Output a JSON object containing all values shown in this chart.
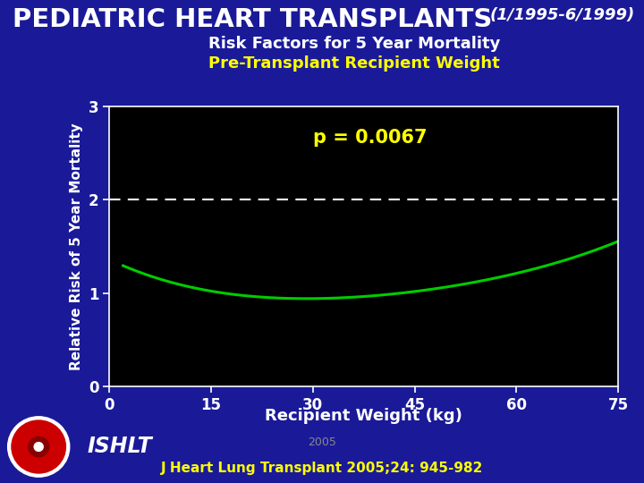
{
  "title_main": "PEDIATRIC HEART TRANSPLANTS",
  "title_date": "(1/1995-6/1999)",
  "subtitle1": "Risk Factors for 5 Year Mortality",
  "subtitle2": "Pre-Transplant Recipient Weight",
  "xlabel": "Recipient Weight (kg)",
  "ylabel": "Relative Risk of 5 Year Mortality",
  "p_value_text": "p = 0.0067",
  "citation": "J Heart Lung Transplant 2005;24: 945-982",
  "year": "2005",
  "ishlt_text": "ISHLT",
  "bg_color": "#1a1a99",
  "plot_bg_color": "#000000",
  "curve_color": "#00cc00",
  "dashed_line_color": "#ffffff",
  "title_color": "#ffffff",
  "subtitle1_color": "#ffffff",
  "subtitle2_color": "#ffff00",
  "pvalue_color": "#ffff00",
  "xlabel_color": "#ffffff",
  "ylabel_color": "#ffffff",
  "tick_color": "#ffffff",
  "citation_color": "#ffff00",
  "year_color": "#888888",
  "ishlt_color": "#ffffff",
  "xmin": 0,
  "xmax": 75,
  "ymin": 0,
  "ymax": 3,
  "yticks": [
    0,
    1,
    2,
    3
  ],
  "xticks": [
    0,
    15,
    30,
    45,
    60,
    75
  ],
  "dashed_y": 2.0,
  "key_x": [
    2,
    10,
    20,
    30,
    38,
    50,
    63,
    75
  ],
  "key_y": [
    1.3,
    1.08,
    0.98,
    0.95,
    0.965,
    1.05,
    1.28,
    1.55
  ]
}
